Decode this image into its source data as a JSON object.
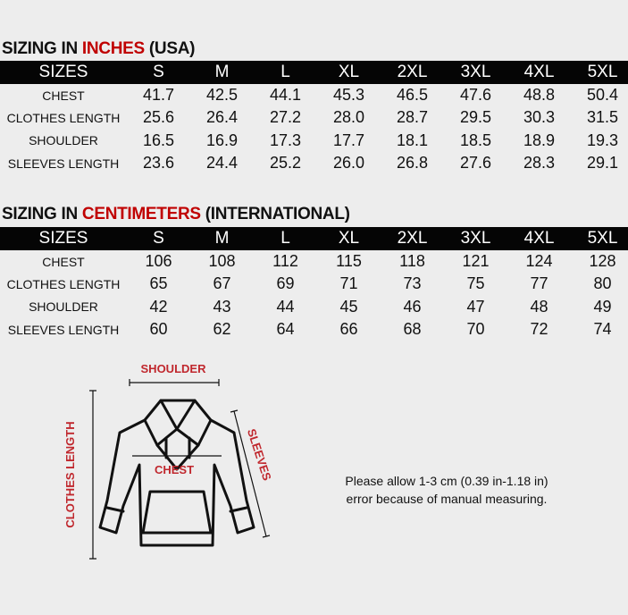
{
  "sizes_header": "SIZES",
  "sizes": [
    "S",
    "M",
    "L",
    "XL",
    "2XL",
    "3XL",
    "4XL",
    "5XL"
  ],
  "inches": {
    "title_prefix": "SIZING IN ",
    "title_highlight": "INCHES",
    "title_suffix": " (USA)",
    "rows": [
      {
        "label": "CHEST",
        "values": [
          "41.7",
          "42.5",
          "44.1",
          "45.3",
          "46.5",
          "47.6",
          "48.8",
          "50.4"
        ]
      },
      {
        "label": "CLOTHES LENGTH",
        "values": [
          "25.6",
          "26.4",
          "27.2",
          "28.0",
          "28.7",
          "29.5",
          "30.3",
          "31.5"
        ]
      },
      {
        "label": "SHOULDER",
        "values": [
          "16.5",
          "16.9",
          "17.3",
          "17.7",
          "18.1",
          "18.5",
          "18.9",
          "19.3"
        ]
      },
      {
        "label": "SLEEVES LENGTH",
        "values": [
          "23.6",
          "24.4",
          "25.2",
          "26.0",
          "26.8",
          "27.6",
          "28.3",
          "29.1"
        ]
      }
    ]
  },
  "cm": {
    "title_prefix": "SIZING IN ",
    "title_highlight": "CENTIMETERS",
    "title_suffix": " (INTERNATIONAL)",
    "rows": [
      {
        "label": "CHEST",
        "values": [
          "106",
          "108",
          "112",
          "115",
          "118",
          "121",
          "124",
          "128"
        ]
      },
      {
        "label": "CLOTHES LENGTH",
        "values": [
          "65",
          "67",
          "69",
          "71",
          "73",
          "75",
          "77",
          "80"
        ]
      },
      {
        "label": "SHOULDER",
        "values": [
          "42",
          "43",
          "44",
          "45",
          "46",
          "47",
          "48",
          "49"
        ]
      },
      {
        "label": "SLEEVES LENGTH",
        "values": [
          "60",
          "62",
          "64",
          "66",
          "68",
          "70",
          "72",
          "74"
        ]
      }
    ]
  },
  "diagram": {
    "shoulder": "SHOULDER",
    "chest": "CHEST",
    "sleeves": "SLEEVES",
    "clothes_length": "CLOTHES LENGTH"
  },
  "note": {
    "line1": "Please allow 1-3 cm (0.39 in-1.18 in)",
    "line2": "error because of manual measuring."
  },
  "colors": {
    "accent": "#c00000",
    "header_bg": "#050505",
    "background": "#ededed"
  }
}
